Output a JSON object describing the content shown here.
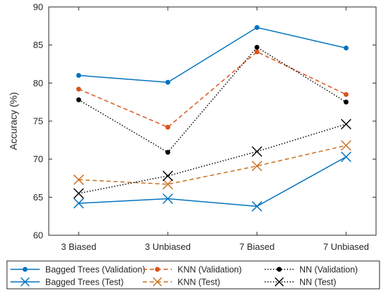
{
  "chart_data": {
    "type": "line",
    "ylabel": "Accuracy (%)",
    "xlabel": "",
    "ylim": [
      60,
      90
    ],
    "yticks": [
      60,
      65,
      70,
      75,
      80,
      85,
      90
    ],
    "categories": [
      "3 Biased",
      "3 Unbiased",
      "7 Biased",
      "7 Unbiased"
    ],
    "grid": false,
    "legend_position": "bottom",
    "series": [
      {
        "name": "Bagged Trees (Validation)",
        "values": [
          81.0,
          80.1,
          87.3,
          84.6
        ],
        "color": "#0072BD",
        "dash": "solid",
        "marker": "dot"
      },
      {
        "name": "KNN (Validation)",
        "values": [
          79.2,
          74.2,
          84.1,
          78.5
        ],
        "color": "#D95319",
        "dash": "dashed",
        "marker": "dot"
      },
      {
        "name": "NN (Validation)",
        "values": [
          77.8,
          70.9,
          84.7,
          77.5
        ],
        "color": "#000000",
        "dash": "dotted",
        "marker": "dot"
      },
      {
        "name": "Bagged Trees (Test)",
        "values": [
          64.2,
          64.8,
          63.8,
          70.3
        ],
        "color": "#0072BD",
        "dash": "solid",
        "marker": "x"
      },
      {
        "name": "KNN (Test)",
        "values": [
          67.3,
          66.7,
          69.1,
          71.8
        ],
        "color": "#C87020",
        "dash": "dashed",
        "marker": "x"
      },
      {
        "name": "NN (Test)",
        "values": [
          65.5,
          67.8,
          71.0,
          74.6
        ],
        "color": "#000000",
        "dash": "dotted",
        "marker": "x"
      }
    ]
  },
  "legend": {
    "order": [
      0,
      1,
      2,
      3,
      4,
      5
    ]
  }
}
